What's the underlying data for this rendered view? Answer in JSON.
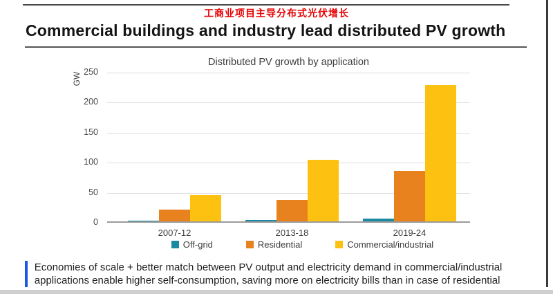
{
  "header": {
    "subtitle_cn": "工商业项目主导分布式光伏增长",
    "subtitle_color": "#e60000",
    "title": "Commercial buildings and industry lead distributed PV growth"
  },
  "chart_data": {
    "type": "bar",
    "title": "Distributed PV growth by application",
    "ylabel": "GW",
    "xlabel": "",
    "categories": [
      "2007-12",
      "2013-18",
      "2019-24"
    ],
    "series": [
      {
        "name": "Off-grid",
        "color": "#1c89a3",
        "values": [
          0.5,
          2,
          5
        ]
      },
      {
        "name": "Residential",
        "color": "#e8821e",
        "values": [
          20,
          36,
          84
        ]
      },
      {
        "name": "Commercial/industrial",
        "color": "#fdc112",
        "values": [
          44,
          103,
          227
        ]
      }
    ],
    "ylim": [
      0,
      250
    ],
    "ytick_interval": 50,
    "grid": true,
    "legend_position": "bottom"
  },
  "note": {
    "accent_color": "#1c5be0",
    "text": "Economies of scale + better match between PV output and electricity demand in commercial/industrial applications enable higher self-consumption, saving more on electricity bills than in case of residential"
  }
}
